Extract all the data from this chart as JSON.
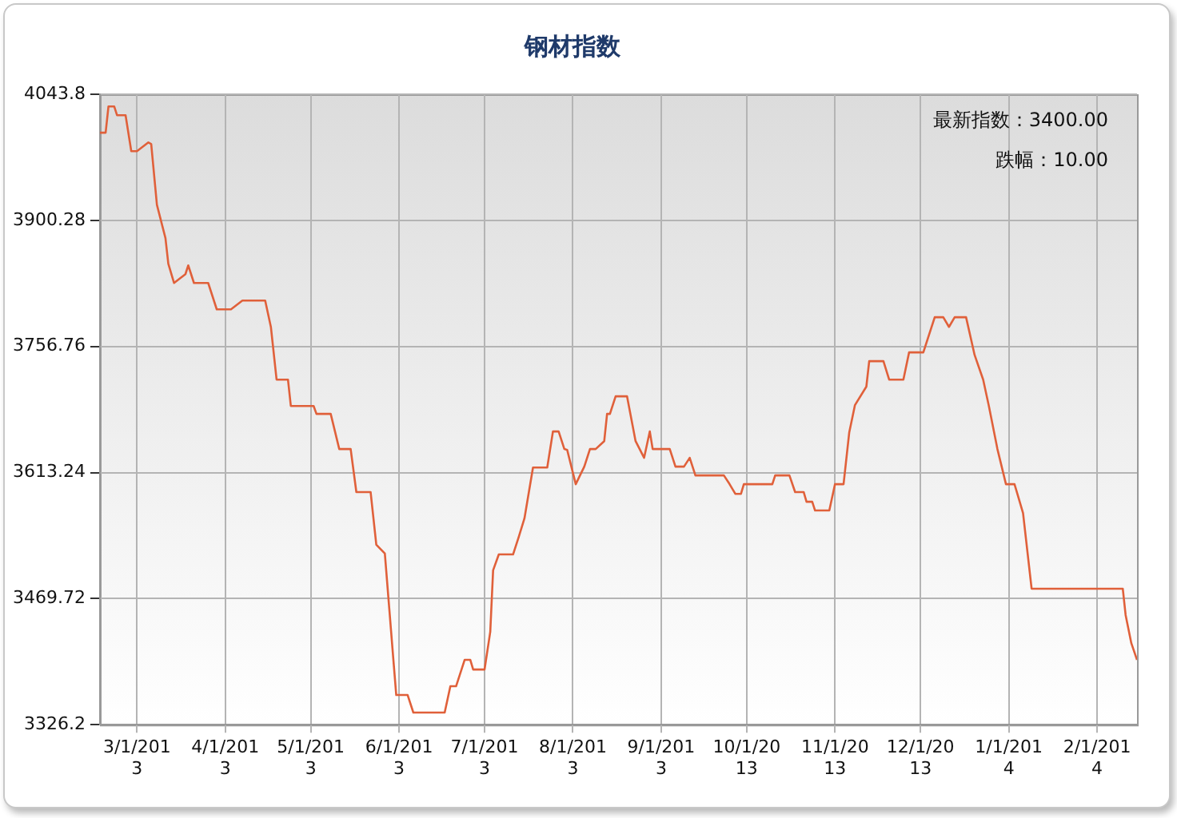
{
  "chart_data": {
    "type": "line",
    "title": "钢材指数",
    "annotations": [
      "最新指数：3400.00",
      "跌幅：10.00"
    ],
    "x": [
      "2013-02-16",
      "2013-02-18",
      "2013-02-19",
      "2013-02-21",
      "2013-02-22",
      "2013-02-25",
      "2013-02-27",
      "2013-03-01",
      "2013-03-05",
      "2013-03-06",
      "2013-03-08",
      "2013-03-11",
      "2013-03-12",
      "2013-03-14",
      "2013-03-18",
      "2013-03-19",
      "2013-03-21",
      "2013-03-26",
      "2013-03-29",
      "2013-04-03",
      "2013-04-07",
      "2013-04-15",
      "2013-04-17",
      "2013-04-19",
      "2013-04-23",
      "2013-04-24",
      "2013-05-02",
      "2013-05-03",
      "2013-05-08",
      "2013-05-11",
      "2013-05-15",
      "2013-05-17",
      "2013-05-22",
      "2013-05-24",
      "2013-05-27",
      "2013-05-30",
      "2013-05-31",
      "2013-06-04",
      "2013-06-06",
      "2013-06-17",
      "2013-06-19",
      "2013-06-21",
      "2013-06-24",
      "2013-06-26",
      "2013-06-27",
      "2013-07-01",
      "2013-07-03",
      "2013-07-04",
      "2013-07-06",
      "2013-07-11",
      "2013-07-13",
      "2013-07-15",
      "2013-07-18",
      "2013-07-23",
      "2013-07-25",
      "2013-07-27",
      "2013-07-29",
      "2013-07-30",
      "2013-08-02",
      "2013-08-05",
      "2013-08-07",
      "2013-08-09",
      "2013-08-12",
      "2013-08-13",
      "2013-08-14",
      "2013-08-16",
      "2013-08-20",
      "2013-08-23",
      "2013-08-26",
      "2013-08-28",
      "2013-08-29",
      "2013-09-04",
      "2013-09-06",
      "2013-09-09",
      "2013-09-11",
      "2013-09-13",
      "2013-09-23",
      "2013-09-25",
      "2013-09-27",
      "2013-09-29",
      "2013-09-30",
      "2013-10-10",
      "2013-10-11",
      "2013-10-16",
      "2013-10-18",
      "2013-10-21",
      "2013-10-22",
      "2013-10-24",
      "2013-10-25",
      "2013-10-30",
      "2013-11-01",
      "2013-11-04",
      "2013-11-06",
      "2013-11-08",
      "2013-11-12",
      "2013-11-13",
      "2013-11-18",
      "2013-11-20",
      "2013-11-25",
      "2013-11-27",
      "2013-12-02",
      "2013-12-06",
      "2013-12-09",
      "2013-12-11",
      "2013-12-13",
      "2013-12-17",
      "2013-12-20",
      "2013-12-23",
      "2013-12-25",
      "2013-12-28",
      "2013-12-31",
      "2014-01-03",
      "2014-01-04",
      "2014-01-06",
      "2014-01-09",
      "2014-02-10",
      "2014-02-11",
      "2014-02-13",
      "2014-02-15"
    ],
    "series": [
      {
        "color": "#e0603a",
        "values": [
          4000,
          4000,
          4030,
          4030,
          4020,
          4020,
          3979,
          3979,
          3989,
          3987,
          3918,
          3880,
          3851,
          3829,
          3839,
          3849,
          3829,
          3829,
          3799,
          3799,
          3809,
          3809,
          3779,
          3719,
          3719,
          3689,
          3689,
          3680,
          3680,
          3640,
          3640,
          3591,
          3591,
          3531,
          3521,
          3400,
          3360,
          3360,
          3340,
          3340,
          3370,
          3370,
          3400,
          3400,
          3389,
          3389,
          3432,
          3502,
          3520,
          3520,
          3540,
          3561,
          3619,
          3619,
          3660,
          3660,
          3640,
          3639,
          3600,
          3620,
          3640,
          3640,
          3649,
          3680,
          3680,
          3700,
          3700,
          3649,
          3630,
          3660,
          3640,
          3640,
          3620,
          3620,
          3630,
          3610,
          3610,
          3600,
          3589,
          3589,
          3600,
          3600,
          3610,
          3610,
          3591,
          3591,
          3580,
          3580,
          3570,
          3570,
          3600,
          3600,
          3659,
          3690,
          3711,
          3740,
          3740,
          3719,
          3719,
          3750,
          3750,
          3790,
          3790,
          3779,
          3790,
          3790,
          3747,
          3719,
          3689,
          3640,
          3600,
          3600,
          3589,
          3567,
          3481,
          3481,
          3451,
          3419,
          3400
        ]
      }
    ],
    "xlim": [
      "2013-02-16",
      "2014-02-15"
    ],
    "xticks": [
      {
        "value": "2013-03-01",
        "label": "3/1/2013"
      },
      {
        "value": "2013-04-01",
        "label": "4/1/2013"
      },
      {
        "value": "2013-05-01",
        "label": "5/1/2013"
      },
      {
        "value": "2013-06-01",
        "label": "6/1/2013"
      },
      {
        "value": "2013-07-01",
        "label": "7/1/2013"
      },
      {
        "value": "2013-08-01",
        "label": "8/1/2013"
      },
      {
        "value": "2013-09-01",
        "label": "9/1/2013"
      },
      {
        "value": "2013-10-01",
        "label": "10/1/2013"
      },
      {
        "value": "2013-11-01",
        "label": "11/1/2013"
      },
      {
        "value": "2013-12-01",
        "label": "12/1/2013"
      },
      {
        "value": "2014-01-01",
        "label": "1/1/2014"
      },
      {
        "value": "2014-02-01",
        "label": "2/1/2014"
      }
    ],
    "ylim": [
      3326.2,
      4043.8
    ],
    "yticks": [
      3326.2,
      3469.72,
      3613.24,
      3756.76,
      3900.28,
      4043.8
    ],
    "grid": true,
    "legend": false,
    "marker": "none",
    "line_style": "solid"
  }
}
